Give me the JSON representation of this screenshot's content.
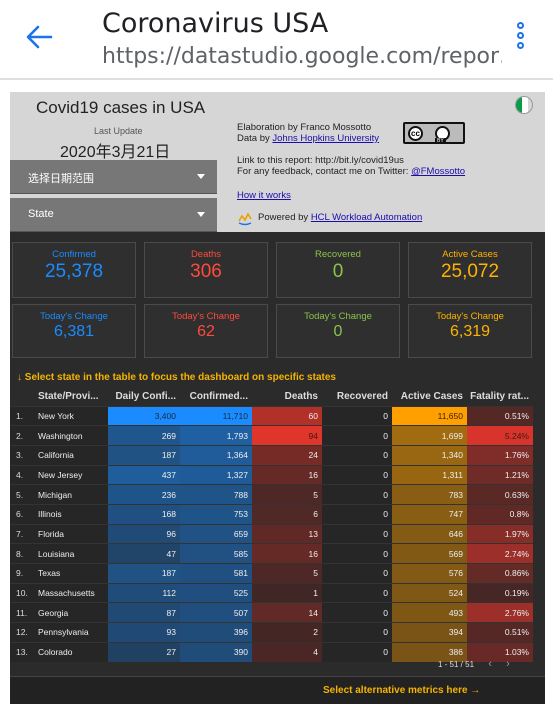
{
  "app": {
    "title": "Coronavirus USA",
    "url": "https://datastudio.google.com/repor…",
    "accent": "#1a73e8"
  },
  "report": {
    "title": "Covid19 cases in USA",
    "last_update_label": "Last Update",
    "last_update_value": "2020年3月21日",
    "date_range_control": "选择日期范围",
    "state_control": "State",
    "info": {
      "elaboration": "Elaboration by Franco Mossotto",
      "data_by_prefix": "Data by ",
      "data_by_link": "Johns Hopkins University",
      "report_link": "Link to this report: http://bit.ly/covid19us",
      "feedback_prefix": "For any feedback, contact me on Twitter: ",
      "feedback_link": "@FMossotto",
      "how_it_works": "How it works",
      "powered_prefix": "Powered by ",
      "powered_link": "HCL Workload Automation"
    },
    "license_cc": "cc",
    "license_by": "BY"
  },
  "cards": [
    {
      "label": "Confirmed",
      "value": "25,378",
      "color": "#1a8cff"
    },
    {
      "label": "Deaths",
      "value": "306",
      "color": "#ff4a3d"
    },
    {
      "label": "Recovered",
      "value": "0",
      "color": "#8bc34a"
    },
    {
      "label": "Active Cases",
      "value": "25,072",
      "color": "#ffb300"
    },
    {
      "label": "Today's Change",
      "value": "6,381",
      "color": "#1a8cff"
    },
    {
      "label": "Today's Change",
      "value": "62",
      "color": "#ff4a3d"
    },
    {
      "label": "Today's Change",
      "value": "0",
      "color": "#8bc34a"
    },
    {
      "label": "Today's Change",
      "value": "6,319",
      "color": "#ffb300"
    }
  ],
  "table": {
    "note": "↓ Select state in the table to focus the dashboard on specific states",
    "headers": [
      "State/Provi...",
      "Daily Confi...",
      "Confirmed...",
      "Deaths",
      "Recovered",
      "Active Cases",
      "Fatality rat..."
    ],
    "rows": [
      [
        "1.",
        "New York",
        "3,400",
        "11,710",
        "60",
        "0",
        "11,650",
        "0.51%"
      ],
      [
        "2.",
        "Washington",
        "269",
        "1,793",
        "94",
        "0",
        "1,699",
        "5.24%"
      ],
      [
        "3.",
        "California",
        "187",
        "1,364",
        "24",
        "0",
        "1,340",
        "1.76%"
      ],
      [
        "4.",
        "New Jersey",
        "437",
        "1,327",
        "16",
        "0",
        "1,311",
        "1.21%"
      ],
      [
        "5.",
        "Michigan",
        "236",
        "788",
        "5",
        "0",
        "783",
        "0.63%"
      ],
      [
        "6.",
        "Illinois",
        "168",
        "753",
        "6",
        "0",
        "747",
        "0.8%"
      ],
      [
        "7.",
        "Florida",
        "96",
        "659",
        "13",
        "0",
        "646",
        "1.97%"
      ],
      [
        "8.",
        "Louisiana",
        "47",
        "585",
        "16",
        "0",
        "569",
        "2.74%"
      ],
      [
        "9.",
        "Texas",
        "187",
        "581",
        "5",
        "0",
        "576",
        "0.86%"
      ],
      [
        "10.",
        "Massachusetts",
        "112",
        "525",
        "1",
        "0",
        "524",
        "0.19%"
      ],
      [
        "11.",
        "Georgia",
        "87",
        "507",
        "14",
        "0",
        "493",
        "2.76%"
      ],
      [
        "12.",
        "Pennsylvania",
        "93",
        "396",
        "2",
        "0",
        "394",
        "0.51%"
      ],
      [
        "13.",
        "Colorado",
        "27",
        "390",
        "4",
        "0",
        "386",
        "1.03%"
      ]
    ],
    "pager": "1 - 51 / 51",
    "alt_metrics": "Select alternative metrics here →"
  }
}
